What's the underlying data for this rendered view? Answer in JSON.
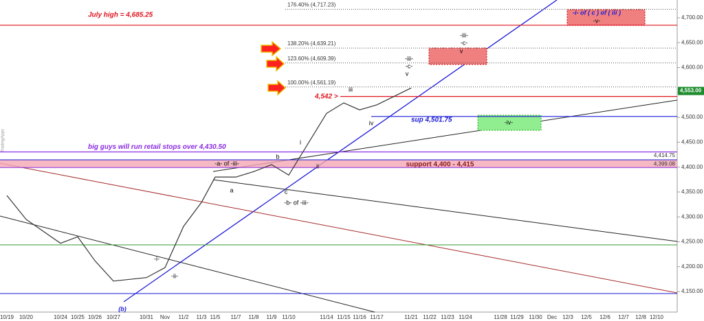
{
  "chart_data": {
    "type": "line",
    "categories": [
      "10/19",
      "10/20",
      "10/24",
      "10/25",
      "10/26",
      "10/27",
      "10/31",
      "Nov",
      "11/2",
      "11/3",
      "11/5",
      "11/7",
      "11/8",
      "11/9",
      "11/10",
      "11/14",
      "11/15",
      "11/16",
      "11/17",
      "11/21",
      "11/22",
      "11/23",
      "11/24",
      "11/28",
      "11/29",
      "11/30",
      "Dec",
      "12/3",
      "12/5",
      "12/6",
      "12/7",
      "12/8",
      "12/10"
    ],
    "series": [
      {
        "name": "Price",
        "color": "#333333",
        "values": [
          4343,
          4295,
          4247,
          4260,
          4212,
          4171,
          4178,
          4198,
          4281,
          4329,
          4380,
          4380,
          4391,
          4405,
          4384,
          4508,
          4529,
          4515,
          4525,
          4559,
          null,
          null,
          null,
          null,
          null,
          null,
          null,
          null,
          null,
          null,
          null,
          null,
          null
        ]
      }
    ],
    "ylim": [
      4108.7,
      4735.8
    ],
    "yticks": [
      {
        "value": 4150,
        "label": "4,150.00"
      },
      {
        "value": 4200,
        "label": "4,200.00"
      },
      {
        "value": 4250,
        "label": "4,250.00"
      },
      {
        "value": 4300,
        "label": "4,300.00"
      },
      {
        "value": 4350,
        "label": "4,350.00"
      },
      {
        "value": 4400,
        "label": "4,400.00"
      },
      {
        "value": 4450,
        "label": "4,450.00"
      },
      {
        "value": 4500,
        "label": "4,500.00"
      },
      {
        "value": 4550,
        "label": "4,550.00"
      },
      {
        "value": 4600,
        "label": "4,600.00"
      },
      {
        "value": 4650,
        "label": "4,650.00"
      },
      {
        "value": 4700,
        "label": "4,700.00"
      }
    ],
    "fib_levels": [
      {
        "value": 4717.23,
        "label": "176.40% (4,717.23)"
      },
      {
        "value": 4639.21,
        "label": "138.20% (4,639.21)"
      },
      {
        "value": 4609.39,
        "label": "123.60% (4,609.39)"
      },
      {
        "value": 4561.19,
        "label": "100.00% (4,561.19)"
      }
    ],
    "price_lines": [
      {
        "value": 4685.25,
        "label": "July high = 4,685.25",
        "color": "#e0141e"
      },
      {
        "value": 4542,
        "label": "4,542 >",
        "color": "#e0141e"
      },
      {
        "value": 4501.75,
        "label": "sup 4,501.75",
        "color": "#1a1ad6"
      },
      {
        "value": 4430.5,
        "label": "big guys will run retail stops over 4,430.50",
        "color": "#8a2be2"
      }
    ],
    "band": {
      "low": 4399.08,
      "high": 4414.75,
      "low_label": "4,399.08",
      "high_label": "4,414.75",
      "label": "support 4,400 - 4,415"
    },
    "last_price": {
      "value": 4553,
      "label": "4,553.00"
    },
    "annotations": [
      "-iii-",
      "-c-",
      "v",
      "-iii-",
      "-c-",
      "v",
      "iii",
      "iv",
      "i",
      "ii",
      "b",
      "a",
      "c",
      "-a- of -iii-",
      "-b- of -iii-",
      "-i-",
      "-ii-",
      "(b)",
      "-iv-",
      "-i- of ( c ) of ( iii )",
      "-v-",
      "TradingApps"
    ]
  }
}
